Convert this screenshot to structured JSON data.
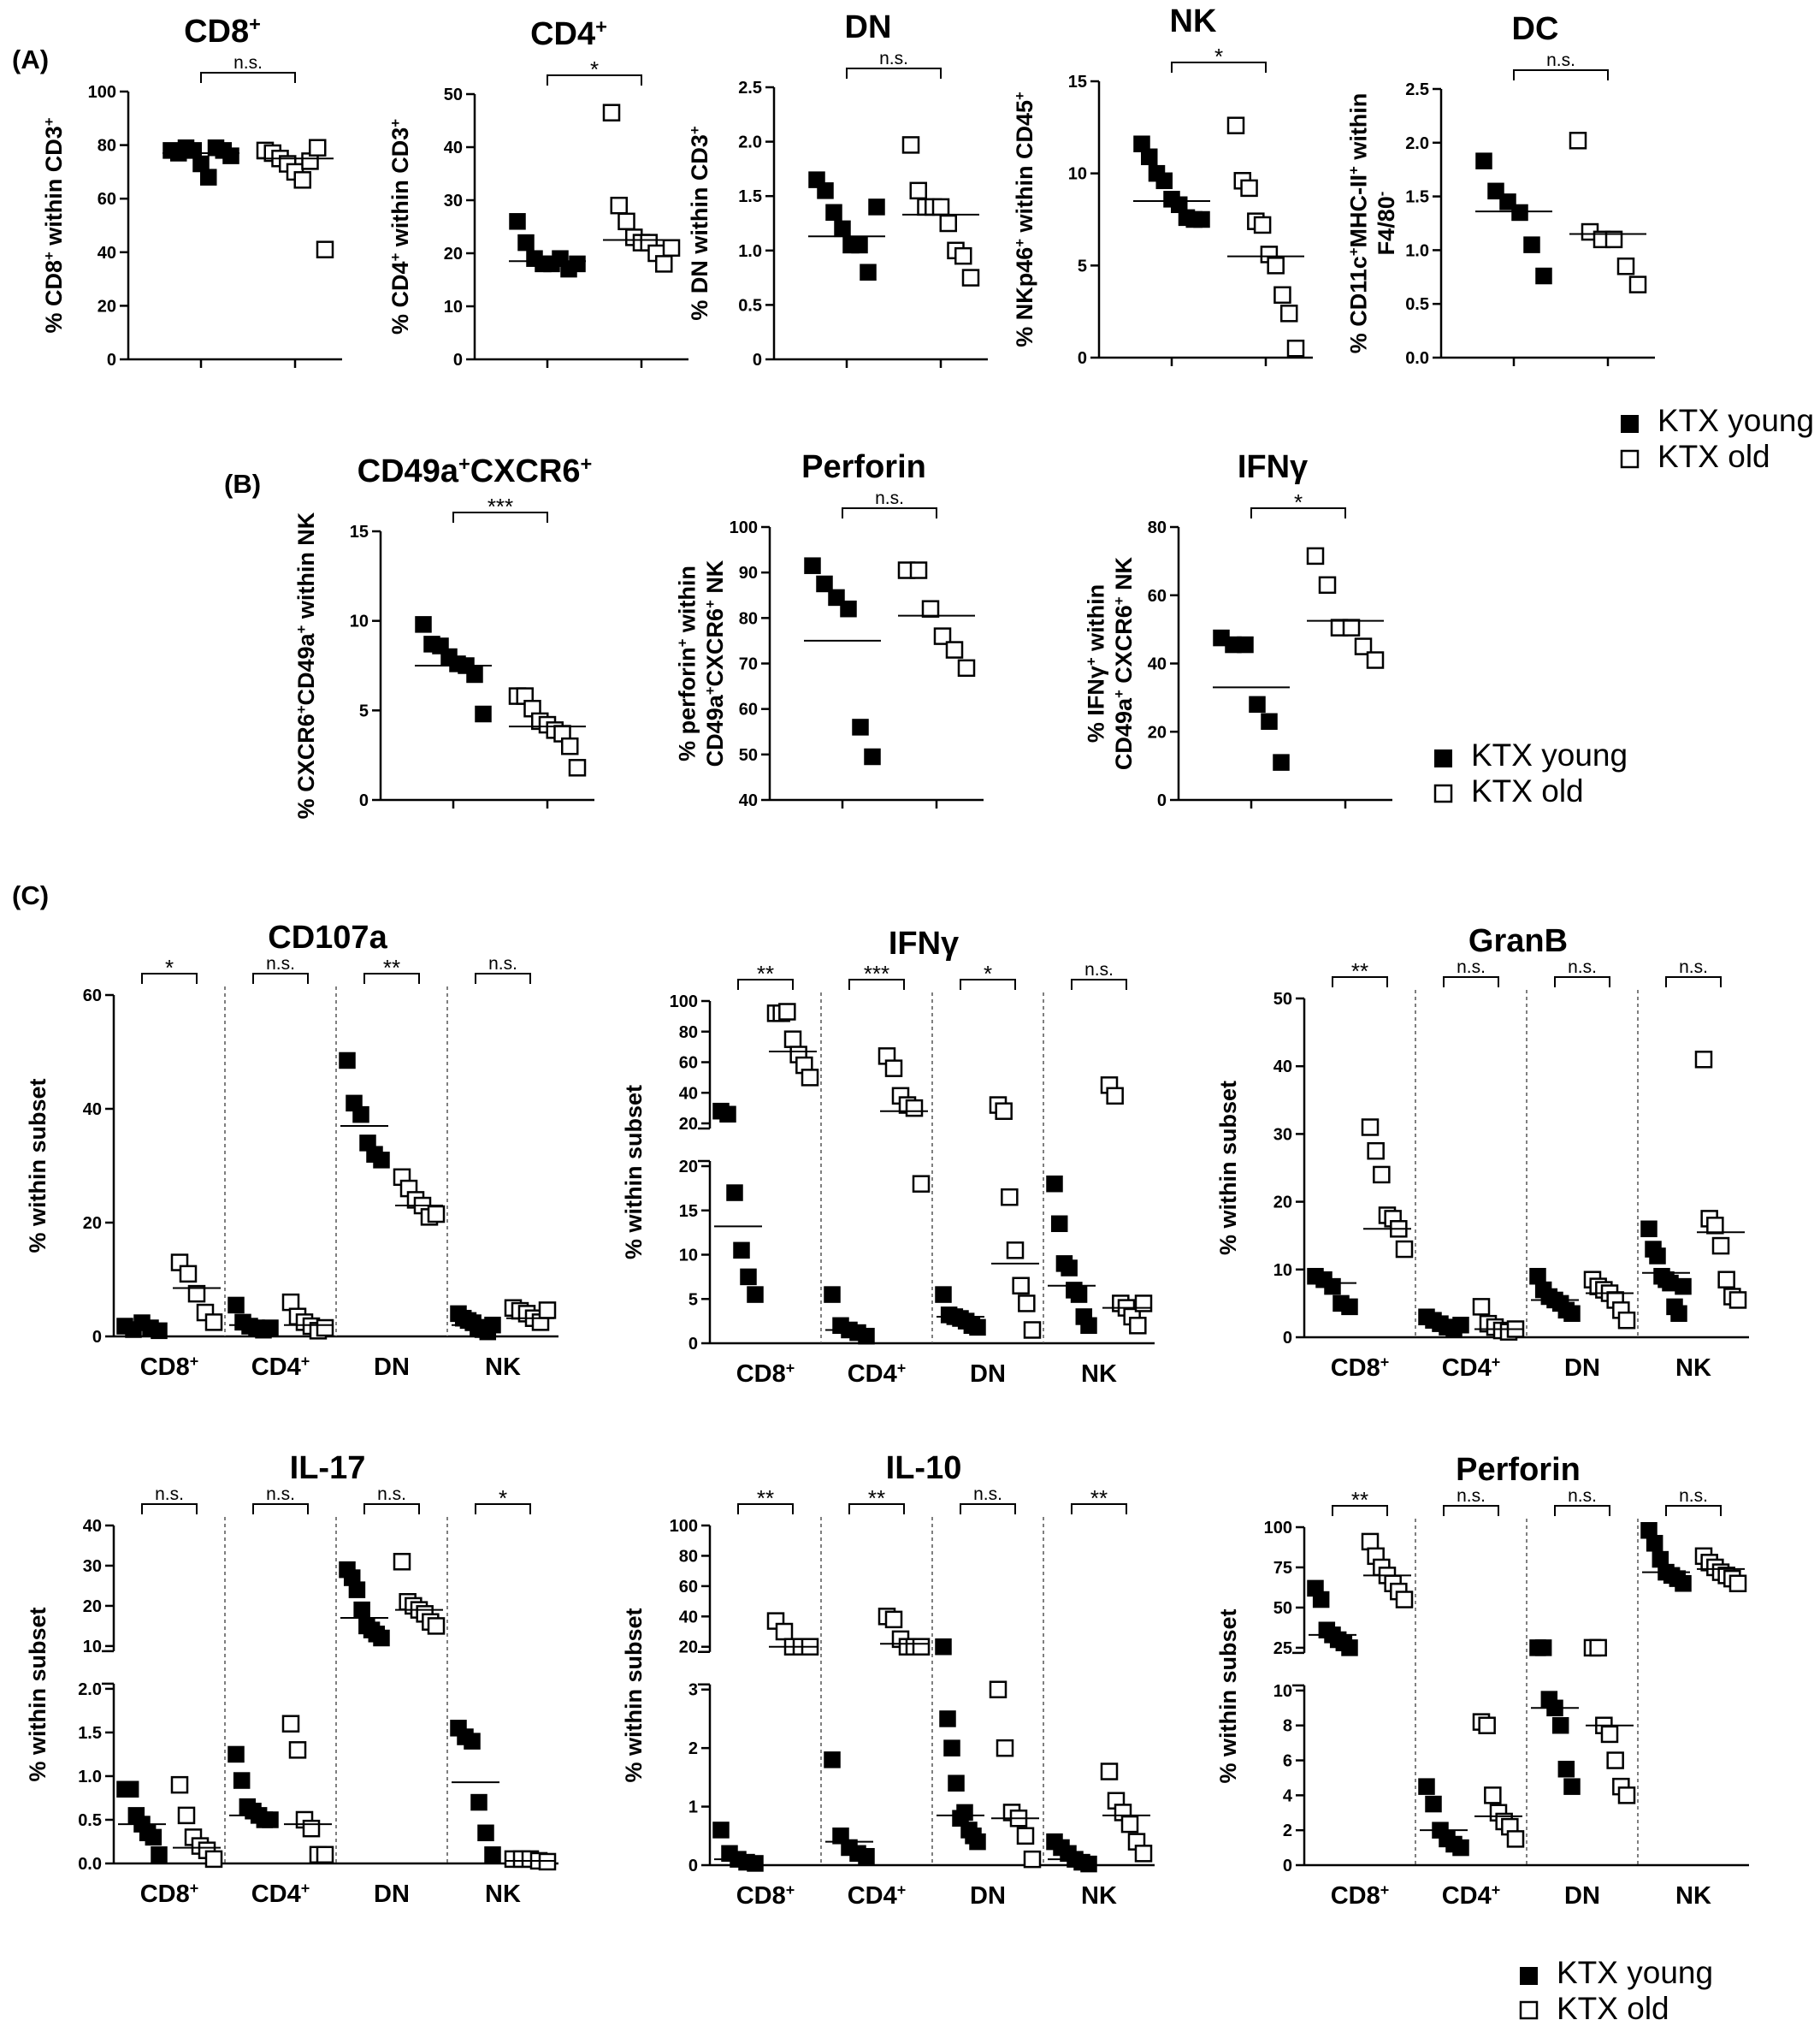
{
  "figure": {
    "panel_labels": [
      "(A)",
      "(B)",
      "(C)"
    ],
    "legends": [
      {
        "young": "KTX young",
        "old": "KTX old"
      },
      {
        "young": "KTX young",
        "old": "KTX old"
      },
      {
        "young": "KTX young",
        "old": "KTX old"
      }
    ],
    "colors": {
      "young": "#000000",
      "old": "#ffffff",
      "stroke": "#000000"
    }
  },
  "chart_data": [
    {
      "type": "scatter",
      "panel": "A",
      "title": "CD8⁺",
      "ylabel": "% CD8⁺ within CD3⁺",
      "ylim": [
        0,
        100
      ],
      "yticks": [
        0,
        20,
        40,
        60,
        80,
        100
      ],
      "sig": "n.s.",
      "young": [
        78,
        77,
        79,
        78,
        73,
        68,
        79,
        78,
        76
      ],
      "old": [
        78,
        77,
        75,
        73,
        70,
        67,
        74,
        79,
        41
      ],
      "means": [
        77,
        75
      ]
    },
    {
      "type": "scatter",
      "panel": "A",
      "title": "CD4⁺",
      "ylabel": "% CD4⁺ within CD3⁺",
      "ylim": [
        0,
        50
      ],
      "yticks": [
        0,
        10,
        20,
        30,
        40,
        50
      ],
      "sig": "*",
      "young": [
        26,
        22,
        19,
        18,
        18,
        19,
        17,
        18
      ],
      "old": [
        46.5,
        29,
        26,
        23,
        22,
        22,
        20,
        18,
        21
      ],
      "means": [
        18.5,
        22.5
      ]
    },
    {
      "type": "scatter",
      "panel": "A",
      "title": "DN",
      "ylabel": "% DN within CD3⁺",
      "ylim": [
        0,
        2.5
      ],
      "yticks": [
        "0",
        "0.5",
        "1.0",
        "1.5",
        "2.0",
        "2.5"
      ],
      "sig": "n.s.",
      "young": [
        1.65,
        1.55,
        1.35,
        1.2,
        1.05,
        1.05,
        0.8,
        1.4
      ],
      "old": [
        1.97,
        1.55,
        1.4,
        1.4,
        1.4,
        1.25,
        1.0,
        0.95,
        0.75
      ],
      "means": [
        1.13,
        1.33
      ]
    },
    {
      "type": "scatter",
      "panel": "A",
      "title": "NK",
      "ylabel": "% NKp46⁺ within CD45⁺",
      "ylim": [
        0,
        15
      ],
      "yticks": [
        0,
        5,
        10,
        15
      ],
      "sig": "*",
      "young": [
        11.6,
        10.9,
        10.0,
        9.6,
        8.6,
        8.3,
        7.6,
        7.5,
        7.5
      ],
      "old": [
        12.6,
        9.6,
        9.2,
        7.4,
        7.2,
        5.6,
        5.0,
        3.4,
        2.4,
        0.5
      ],
      "means": [
        8.5,
        5.5
      ]
    },
    {
      "type": "scatter",
      "panel": "A",
      "title": "DC",
      "ylabel": "% CD11c⁺MHC-II⁺ within F4/80⁻",
      "ylim": [
        0,
        2.5
      ],
      "yticks": [
        "0.0",
        "0.5",
        "1.0",
        "1.5",
        "2.0",
        "2.5"
      ],
      "sig": "n.s.",
      "young": [
        1.83,
        1.55,
        1.45,
        1.35,
        1.05,
        0.76
      ],
      "old": [
        2.02,
        1.17,
        1.1,
        1.1,
        0.85,
        0.68
      ],
      "means": [
        1.36,
        1.15
      ]
    },
    {
      "type": "scatter",
      "panel": "B",
      "title": "CD49a⁺CXCR6⁺",
      "ylabel": "% CXCR6⁺CD49a⁺ within NK",
      "ylim": [
        0,
        15
      ],
      "yticks": [
        0,
        5,
        10,
        15
      ],
      "sig": "***",
      "young": [
        9.8,
        8.7,
        8.6,
        8.0,
        7.6,
        7.5,
        7.0,
        4.8
      ],
      "old": [
        5.8,
        5.8,
        5.1,
        4.4,
        4.2,
        3.9,
        3.7,
        3.0,
        1.8
      ],
      "means": [
        7.5,
        4.1
      ]
    },
    {
      "type": "scatter",
      "panel": "B",
      "title": "Perforin",
      "ylabel": "% perforin⁺ within CD49a⁺CXCR6⁺ NK",
      "ylim": [
        40,
        100
      ],
      "yticks": [
        40,
        50,
        60,
        70,
        80,
        90,
        100
      ],
      "sig": "n.s.",
      "young": [
        91.5,
        87.5,
        84.5,
        82,
        56,
        49.5
      ],
      "old": [
        90.5,
        90.5,
        82,
        76,
        73,
        69
      ],
      "means": [
        75,
        80.5
      ]
    },
    {
      "type": "scatter",
      "panel": "B",
      "title": "IFNγ",
      "ylabel": "% IFNγ⁺ within CD49a⁺ CXCR6⁺ NK",
      "ylim": [
        0,
        80
      ],
      "yticks": [
        0,
        20,
        40,
        60,
        80
      ],
      "sig": "*",
      "young": [
        47.5,
        45.5,
        45.5,
        28,
        23,
        11
      ],
      "old": [
        71.5,
        63,
        50.5,
        50.5,
        45,
        41
      ],
      "means": [
        33,
        52.5
      ]
    },
    {
      "type": "scatter",
      "panel": "C",
      "title": "CD107a",
      "ylabel": "% within subset",
      "categories": [
        "CD8⁺",
        "CD4⁺",
        "DN",
        "NK"
      ],
      "ylim": [
        0,
        60
      ],
      "yticks": [
        0,
        20,
        40,
        60
      ],
      "sig": [
        "*",
        "n.s.",
        "**",
        "n.s."
      ],
      "young": [
        [
          1.8,
          1.2,
          2.4,
          1.5,
          1.0
        ],
        [
          5.5,
          2.5,
          1.8,
          1.5,
          1.1,
          1.5
        ],
        [
          48.5,
          41,
          39,
          34,
          32,
          31
        ],
        [
          4,
          3.2,
          2.8,
          2.4,
          1.6,
          1.2,
          0.8,
          2.0
        ]
      ],
      "old": [
        [
          13,
          11,
          7.5,
          4.2,
          2.5
        ],
        [
          6,
          3.5,
          2.5,
          1.8,
          1.0,
          1.5
        ],
        [
          28,
          26,
          24,
          23,
          21,
          21.5
        ],
        [
          5,
          4.5,
          4,
          3.2,
          2.5,
          4.6
        ]
      ],
      "means": [
        1.5,
        2.0,
        37,
        2.0,
        8.5,
        2.0,
        23,
        3.2
      ]
    },
    {
      "type": "scatter",
      "panel": "C",
      "title": "IFNγ",
      "ylabel": "% within subset",
      "categories": [
        "CD8⁺",
        "CD4⁺",
        "DN",
        "NK"
      ],
      "broken_axis": true,
      "lower": {
        "ylim": [
          0,
          20
        ],
        "yticks": [
          0,
          5,
          10,
          15,
          20
        ]
      },
      "upper": {
        "ylim": [
          20,
          100
        ],
        "yticks": [
          20,
          40,
          60,
          80,
          100
        ]
      },
      "sig": [
        "**",
        "***",
        "*",
        "n.s."
      ],
      "young": [
        [
          28,
          26,
          17,
          10.5,
          7.5,
          5.5
        ],
        [
          5.5,
          2,
          1.5,
          1.2,
          0.8
        ],
        [
          5.5,
          3.2,
          3,
          2.8,
          2.5,
          2.0,
          1.8
        ],
        [
          18,
          13.5,
          9,
          8.5,
          6,
          5.5,
          3,
          2.0
        ]
      ],
      "old": [
        [
          92,
          92,
          93,
          75,
          65,
          58,
          50
        ],
        [
          64,
          56,
          38,
          32,
          30,
          18
        ],
        [
          32,
          28,
          16.5,
          10.5,
          6.5,
          4.5,
          1.5
        ],
        [
          45,
          38,
          4.5,
          4,
          3,
          2,
          4.5
        ]
      ],
      "means": [
        13.2,
        1.5,
        3.0,
        6.5,
        67,
        28,
        9.0,
        4.0
      ]
    },
    {
      "type": "scatter",
      "panel": "C",
      "title": "GranB",
      "ylabel": "% within subset",
      "categories": [
        "CD8⁺",
        "CD4⁺",
        "DN",
        "NK"
      ],
      "ylim": [
        0,
        50
      ],
      "yticks": [
        0,
        10,
        20,
        30,
        40,
        50
      ],
      "sig": [
        "**",
        "n.s.",
        "n.s.",
        "n.s."
      ],
      "young": [
        [
          9,
          8.5,
          7.5,
          5,
          4.5
        ],
        [
          3,
          2.5,
          2,
          1.5,
          1.2,
          1.8
        ],
        [
          9,
          7,
          6,
          5.5,
          5,
          4,
          3.5
        ],
        [
          16,
          13,
          12,
          9,
          8.5,
          8,
          4.5,
          3.5,
          7.5
        ]
      ],
      "old": [
        [
          31,
          27.5,
          24,
          18,
          17.5,
          16,
          13
        ],
        [
          4.5,
          2,
          1.5,
          1,
          0.8,
          1.2
        ],
        [
          8.5,
          7.5,
          7,
          6.5,
          5.5,
          4,
          2.5
        ],
        [
          41,
          17.5,
          16.5,
          13.5,
          8.5,
          6,
          5.5
        ]
      ],
      "means": [
        8,
        2,
        5.5,
        9.5,
        16,
        1.2,
        6.5,
        15.5
      ]
    },
    {
      "type": "scatter",
      "panel": "C",
      "title": "IL-17",
      "ylabel": "% within subset",
      "categories": [
        "CD8⁺",
        "CD4⁺",
        "DN",
        "NK"
      ],
      "broken_axis": true,
      "lower": {
        "ylim": [
          0,
          2
        ],
        "yticks": [
          "0.0",
          "0.5",
          "1.0",
          "1.5",
          "2.0"
        ]
      },
      "upper": {
        "ylim": [
          0,
          40
        ],
        "yticks": [
          10,
          20,
          30,
          40
        ]
      },
      "sig": [
        "n.s.",
        "n.s.",
        "n.s.",
        "*"
      ],
      "young": [
        [
          0.85,
          0.85,
          0.55,
          0.45,
          0.35,
          0.3,
          0.1
        ],
        [
          1.25,
          0.95,
          0.65,
          0.6,
          0.55,
          0.5,
          0.5
        ],
        [
          29,
          27,
          24,
          19,
          15,
          14,
          13,
          12
        ],
        [
          1.55,
          1.45,
          1.4,
          0.7,
          0.35,
          0.1
        ]
      ],
      "old": [
        [
          0.9,
          0.55,
          0.3,
          0.2,
          0.15,
          0.05
        ],
        [
          1.6,
          1.3,
          0.5,
          0.4,
          0.1,
          0.1
        ],
        [
          31,
          21,
          20,
          19,
          18,
          16,
          15
        ],
        [
          0.05,
          0.05,
          0.05,
          0.03,
          0.02
        ]
      ],
      "means": [
        0.45,
        0.55,
        17,
        0.93,
        0.18,
        0.45,
        19,
        0.03
      ]
    },
    {
      "type": "scatter",
      "panel": "C",
      "title": "IL-10",
      "ylabel": "% within subset",
      "categories": [
        "CD8⁺",
        "CD4⁺",
        "DN",
        "NK"
      ],
      "broken_axis": true,
      "lower": {
        "ylim": [
          0,
          3
        ],
        "yticks": [
          0,
          1,
          2,
          3
        ]
      },
      "upper": {
        "ylim": [
          0,
          100
        ],
        "yticks": [
          20,
          40,
          60,
          80,
          100
        ]
      },
      "sig": [
        "**",
        "**",
        "n.s.",
        "**"
      ],
      "young": [
        [
          0.6,
          0.2,
          0.1,
          0.05,
          0.03
        ],
        [
          1.8,
          0.5,
          0.3,
          0.2,
          0.15
        ],
        [
          5,
          2.5,
          2,
          1.4,
          0.8,
          0.9,
          0.6,
          0.5,
          0.4
        ],
        [
          0.4,
          0.3,
          0.2,
          0.1,
          0.05,
          0.02
        ]
      ],
      "old": [
        [
          37,
          30,
          20,
          12,
          10
        ],
        [
          40,
          38,
          25,
          20,
          15,
          12
        ],
        [
          3,
          2,
          0.9,
          0.8,
          0.5,
          0.1
        ],
        [
          1.6,
          1.1,
          0.9,
          0.7,
          0.4,
          0.2
        ]
      ],
      "means": [
        0.1,
        0.4,
        0.85,
        0.1,
        17,
        22,
        0.8,
        0.85
      ]
    },
    {
      "type": "scatter",
      "panel": "C",
      "title": "Perforin",
      "ylabel": "% within subset",
      "categories": [
        "CD8⁺",
        "CD4⁺",
        "DN",
        "NK"
      ],
      "broken_axis": true,
      "lower": {
        "ylim": [
          0,
          10
        ],
        "yticks": [
          0,
          2,
          4,
          6,
          8,
          10
        ]
      },
      "upper": {
        "ylim": [
          0,
          100
        ],
        "yticks": [
          25,
          50,
          75,
          100
        ]
      },
      "sig": [
        "**",
        "n.s.",
        "n.s.",
        "n.s."
      ],
      "young": [
        [
          62,
          55,
          36,
          33,
          30,
          28,
          20
        ],
        [
          4.5,
          3.5,
          2,
          1.5,
          1.2,
          1.0
        ],
        [
          11.5,
          11,
          9.5,
          9,
          8,
          5.5,
          4.5
        ],
        [
          98,
          90,
          80,
          72,
          70,
          68,
          65
        ]
      ],
      "old": [
        [
          91,
          82,
          75,
          70,
          65,
          60,
          55
        ],
        [
          8.2,
          8,
          4,
          3,
          2.5,
          2.2,
          1.5
        ],
        [
          11,
          11,
          8,
          7.5,
          6,
          4.5,
          4
        ],
        [
          82,
          78,
          75,
          72,
          70,
          68,
          65
        ]
      ],
      "means": [
        33,
        2,
        9,
        72,
        70,
        2.8,
        8,
        74
      ]
    }
  ]
}
